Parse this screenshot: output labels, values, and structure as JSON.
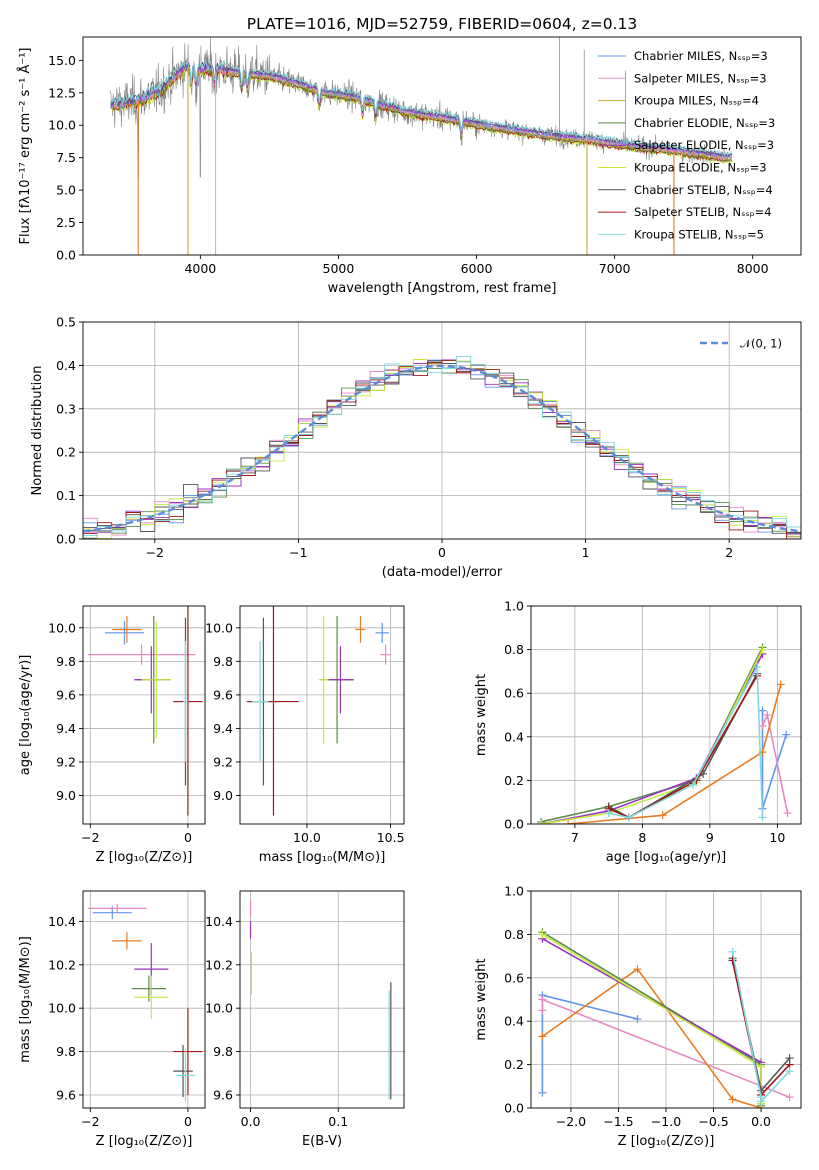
{
  "title": "PLATE=1016, MJD=52759, FIBERID=0604, z=0.13",
  "colors": {
    "chabrier_miles": "#6495ed",
    "salpeter_miles": "#e78ac3",
    "kroupa_miles": "#c8a82a",
    "chabrier_elodie": "#5b8c4a",
    "salpeter_elodie": "#9b30c0",
    "kroupa_elodie": "#c5ea3a",
    "chabrier_stelib": "#555555",
    "salpeter_stelib": "#a01818",
    "kroupa_stelib": "#80d8e0",
    "orange": "#e87d24",
    "data": "#808080"
  },
  "chart_data": [
    {
      "id": "spectrum",
      "type": "line",
      "xlabel": "wavelength [Angstrom, rest frame]",
      "ylabel": "Flux [fλ10⁻¹⁷ erg cm⁻² s⁻¹ Å⁻¹]",
      "xlim": [
        3150,
        8350
      ],
      "ylim": [
        0,
        16.8
      ],
      "xticks": [
        "4000",
        "5000",
        "6000",
        "7000",
        "8000"
      ],
      "yticks": [
        "0.0",
        "2.5",
        "5.0",
        "7.5",
        "10.0",
        "12.5",
        "15.0"
      ],
      "legend": [
        "Chabrier MILES, Nₛₛₚ=3",
        "Salpeter MILES, Nₛₛₚ=3",
        "Kroupa MILES, Nₛₛₚ=4",
        "Chabrier ELODIE, Nₛₛₚ=3",
        "Salpeter ELODIE, Nₛₛₚ=3",
        "Kroupa ELODIE, Nₛₛₚ=3",
        "Chabrier STELIB, Nₛₛₚ=4",
        "Salpeter STELIB, Nₛₛₚ=4",
        "Kroupa STELIB, Nₛₛₚ=5"
      ],
      "legend_placement": "upper-right",
      "model_continuum": {
        "x": [
          3350,
          3450,
          3550,
          3650,
          3700,
          3800,
          3900,
          3950,
          4050,
          4150,
          4300,
          4500,
          4700,
          4900,
          5100,
          5300,
          5500,
          5800,
          6100,
          6400,
          6600,
          6800,
          7000,
          7200,
          7400,
          7600,
          7800
        ],
        "y": [
          11.5,
          11.7,
          11.9,
          12.4,
          12.6,
          13.6,
          14.6,
          14.2,
          14.4,
          14.3,
          14.0,
          13.8,
          13.2,
          12.5,
          12.2,
          11.6,
          11.0,
          10.5,
          9.9,
          9.4,
          9.1,
          8.9,
          8.6,
          8.3,
          8.1,
          7.8,
          7.5
        ]
      }
    },
    {
      "id": "residuals",
      "type": "bar",
      "xlabel": "(data-model)/error",
      "ylabel": "Normed distribution",
      "xlim": [
        -2.5,
        2.5
      ],
      "ylim": [
        0,
        0.5
      ],
      "xticks": [
        "−2",
        "−1",
        "0",
        "1",
        "2"
      ],
      "yticks": [
        "0.0",
        "0.1",
        "0.2",
        "0.3",
        "0.4",
        "0.5"
      ],
      "legend": [
        "𝒩(0, 1)"
      ],
      "legend_placement": "upper-right",
      "bin_width": 0.1,
      "bin_start": -2.5
    },
    {
      "id": "age_vs_Z",
      "type": "scatter",
      "xlabel": "Z [log₁₀(Z/Z⊙)]",
      "ylabel": "age  [log₁₀(age/yr)]",
      "xlim": [
        -2.15,
        0.35
      ],
      "ylim": [
        8.83,
        10.13
      ],
      "xticks": [
        "−2",
        "0"
      ],
      "yticks": [
        "9.0",
        "9.2",
        "9.4",
        "9.6",
        "9.8",
        "10.0"
      ],
      "points": [
        {
          "model": "chabrier_miles",
          "x": -1.3,
          "y": 9.97,
          "xerr": 0.4,
          "yerr": 0.07
        },
        {
          "model": "salpeter_miles",
          "x": -0.95,
          "y": 9.84,
          "xerr": 1.1,
          "yerr": 0.06
        },
        {
          "model": "orange",
          "x": -1.25,
          "y": 9.99,
          "xerr": 0.3,
          "yerr": 0.08
        },
        {
          "model": "chabrier_elodie",
          "x": -0.7,
          "y": 9.69,
          "xerr": 0.35,
          "yerr": 0.38
        },
        {
          "model": "salpeter_elodie",
          "x": -0.75,
          "y": 9.69,
          "xerr": 0.35,
          "yerr": 0.2
        },
        {
          "model": "kroupa_elodie",
          "x": -0.65,
          "y": 9.69,
          "xerr": 0.3,
          "yerr": 0.35
        },
        {
          "model": "chabrier_stelib",
          "x": -0.05,
          "y": 9.56,
          "xerr": 0.05,
          "yerr": 0.5
        },
        {
          "model": "salpeter_stelib",
          "x": 0.0,
          "y": 9.56,
          "xerr": 0.3,
          "yerr": 0.68
        },
        {
          "model": "kroupa_stelib",
          "x": -0.05,
          "y": 9.56,
          "xerr": 0.05,
          "yerr": 0.36
        }
      ]
    },
    {
      "id": "age_vs_mass",
      "type": "scatter",
      "xlabel": "mass [log₁₀(M/M⊙)]",
      "ylabel": "",
      "xlim": [
        9.6,
        10.58
      ],
      "ylim": [
        8.83,
        10.13
      ],
      "xticks": [
        "10.0",
        "10.5"
      ],
      "yticks": [
        "9.0",
        "9.2",
        "9.4",
        "9.6",
        "9.8",
        "10.0"
      ],
      "points": [
        {
          "model": "chabrier_miles",
          "x": 10.45,
          "y": 9.97,
          "xerr": 0.04,
          "yerr": 0.06
        },
        {
          "model": "salpeter_miles",
          "x": 10.47,
          "y": 9.84,
          "xerr": 0.03,
          "yerr": 0.06
        },
        {
          "model": "orange",
          "x": 10.32,
          "y": 9.99,
          "xerr": 0.03,
          "yerr": 0.08
        },
        {
          "model": "chabrier_elodie",
          "x": 10.18,
          "y": 9.69,
          "xerr": 0.1,
          "yerr": 0.38
        },
        {
          "model": "salpeter_elodie",
          "x": 10.2,
          "y": 9.69,
          "xerr": 0.08,
          "yerr": 0.2
        },
        {
          "model": "kroupa_elodie",
          "x": 10.1,
          "y": 9.69,
          "xerr": 0.03,
          "yerr": 0.38
        },
        {
          "model": "chabrier_stelib",
          "x": 9.74,
          "y": 9.56,
          "xerr": 0.1,
          "yerr": 0.5
        },
        {
          "model": "salpeter_stelib",
          "x": 9.8,
          "y": 9.56,
          "xerr": 0.15,
          "yerr": 0.68
        },
        {
          "model": "kroupa_stelib",
          "x": 9.72,
          "y": 9.56,
          "xerr": 0.05,
          "yerr": 0.36
        }
      ]
    },
    {
      "id": "weight_vs_age",
      "type": "line",
      "xlabel": "age  [log₁₀(age/yr)]",
      "ylabel": "mass weight",
      "xlim": [
        6.35,
        10.35
      ],
      "ylim": [
        0,
        1
      ],
      "xticks": [
        "7",
        "8",
        "9",
        "10"
      ],
      "yticks": [
        "0.0",
        "0.2",
        "0.4",
        "0.6",
        "0.8",
        "1.0"
      ],
      "series": [
        {
          "model": "chabrier_miles",
          "x": [
            9.78,
            9.78,
            10.13
          ],
          "y": [
            0.52,
            0.07,
            0.41
          ]
        },
        {
          "model": "salpeter_miles",
          "x": [
            9.78,
            9.85,
            10.15
          ],
          "y": [
            0.45,
            0.5,
            0.05
          ]
        },
        {
          "model": "orange",
          "x": [
            6.9,
            8.3,
            9.78,
            10.05
          ],
          "y": [
            0.0,
            0.04,
            0.33,
            0.64
          ]
        },
        {
          "model": "chabrier_elodie",
          "x": [
            6.5,
            7.5,
            8.8,
            9.78
          ],
          "y": [
            0.01,
            0.08,
            0.2,
            0.81
          ]
        },
        {
          "model": "salpeter_elodie",
          "x": [
            6.5,
            7.5,
            8.8,
            9.78
          ],
          "y": [
            0.0,
            0.06,
            0.21,
            0.78
          ]
        },
        {
          "model": "kroupa_elodie",
          "x": [
            6.5,
            7.5,
            8.8,
            9.78
          ],
          "y": [
            0.0,
            0.05,
            0.19,
            0.8
          ]
        },
        {
          "model": "chabrier_stelib",
          "x": [
            7.5,
            7.8,
            8.9,
            9.7
          ],
          "y": [
            0.08,
            0.03,
            0.23,
            0.69
          ]
        },
        {
          "model": "salpeter_stelib",
          "x": [
            7.5,
            7.8,
            8.8,
            9.7
          ],
          "y": [
            0.07,
            0.03,
            0.2,
            0.68
          ]
        },
        {
          "model": "kroupa_stelib",
          "x": [
            7.5,
            7.8,
            8.75,
            9.7,
            9.78
          ],
          "y": [
            0.05,
            0.03,
            0.18,
            0.72,
            0.03
          ]
        }
      ]
    },
    {
      "id": "mass_vs_Z",
      "type": "scatter",
      "xlabel": "Z [log₁₀(Z/Z⊙)]",
      "ylabel": "mass [log₁₀(M/M⊙)]",
      "xlim": [
        -2.15,
        0.35
      ],
      "ylim": [
        9.54,
        10.54
      ],
      "xticks": [
        "−2",
        "0"
      ],
      "yticks": [
        "9.6",
        "9.8",
        "10.0",
        "10.2",
        "10.4"
      ],
      "points": [
        {
          "model": "chabrier_miles",
          "x": -1.55,
          "y": 10.44,
          "xerr": 0.4,
          "yerr": 0.03
        },
        {
          "model": "salpeter_miles",
          "x": -1.45,
          "y": 10.46,
          "xerr": 0.6,
          "yerr": 0.02
        },
        {
          "model": "orange",
          "x": -1.25,
          "y": 10.31,
          "xerr": 0.3,
          "yerr": 0.04
        },
        {
          "model": "chabrier_elodie",
          "x": -0.8,
          "y": 10.09,
          "xerr": 0.35,
          "yerr": 0.06
        },
        {
          "model": "salpeter_elodie",
          "x": -0.75,
          "y": 10.18,
          "xerr": 0.35,
          "yerr": 0.12
        },
        {
          "model": "kroupa_elodie",
          "x": -0.75,
          "y": 10.05,
          "xerr": 0.35,
          "yerr": 0.1
        },
        {
          "model": "chabrier_stelib",
          "x": -0.1,
          "y": 9.71,
          "xerr": 0.2,
          "yerr": 0.12
        },
        {
          "model": "salpeter_stelib",
          "x": 0.0,
          "y": 9.8,
          "xerr": 0.3,
          "yerr": 0.2
        },
        {
          "model": "kroupa_stelib",
          "x": -0.05,
          "y": 9.69,
          "xerr": 0.2,
          "yerr": 0.12
        }
      ]
    },
    {
      "id": "mass_vs_ebv",
      "type": "scatter",
      "xlabel": "E(B-V)",
      "ylabel": "",
      "xlim": [
        -0.012,
        0.175
      ],
      "ylim": [
        9.54,
        10.54
      ],
      "xticks": [
        "0.0",
        "0.1"
      ],
      "yticks": [
        "9.6",
        "9.8",
        "10.0",
        "10.2",
        "10.4"
      ],
      "points": [
        {
          "model": "salpeter_miles",
          "x": 0.0,
          "y": 10.46,
          "xerr": 0.0,
          "yerr": 0.04
        },
        {
          "model": "salpeter_elodie",
          "x": 0.0,
          "y": 10.36,
          "xerr": 0.0,
          "yerr": 0.04
        },
        {
          "model": "kroupa_elodie",
          "x": 0.001,
          "y": 10.16,
          "xerr": 0.0,
          "yerr": 0.1
        },
        {
          "model": "chabrier_stelib",
          "x": 0.16,
          "y": 9.85,
          "xerr": 0.0,
          "yerr": 0.27
        },
        {
          "model": "kroupa_stelib",
          "x": 0.158,
          "y": 9.83,
          "xerr": 0.0,
          "yerr": 0.25
        }
      ]
    },
    {
      "id": "weight_vs_Z",
      "type": "line",
      "xlabel": "Z [log₁₀(Z/Z⊙)]",
      "ylabel": "mass weight",
      "xlim": [
        -2.42,
        0.42
      ],
      "ylim": [
        0,
        1
      ],
      "xticks": [
        "−2.0",
        "−1.5",
        "−1.0",
        "−0.5",
        "0.0"
      ],
      "yticks": [
        "0.0",
        "0.2",
        "0.4",
        "0.6",
        "0.8",
        "1.0"
      ],
      "series": [
        {
          "model": "chabrier_miles",
          "x": [
            -2.3,
            -2.3,
            -1.3
          ],
          "y": [
            0.07,
            0.52,
            0.41
          ]
        },
        {
          "model": "salpeter_miles",
          "x": [
            -2.3,
            -2.3,
            0.3
          ],
          "y": [
            0.45,
            0.5,
            0.05
          ]
        },
        {
          "model": "orange",
          "x": [
            -2.3,
            -1.3,
            -0.3,
            0.0
          ],
          "y": [
            0.33,
            0.64,
            0.04,
            0.0
          ]
        },
        {
          "model": "chabrier_elodie",
          "x": [
            -2.3,
            0.0,
            0.0
          ],
          "y": [
            0.81,
            0.2,
            0.01
          ]
        },
        {
          "model": "salpeter_elodie",
          "x": [
            -2.3,
            0.0,
            0.0
          ],
          "y": [
            0.78,
            0.21,
            0.02
          ]
        },
        {
          "model": "kroupa_elodie",
          "x": [
            -2.3,
            0.0,
            0.0
          ],
          "y": [
            0.8,
            0.19,
            0.02
          ]
        },
        {
          "model": "chabrier_stelib",
          "x": [
            -0.3,
            0.0,
            0.3
          ],
          "y": [
            0.69,
            0.08,
            0.23
          ]
        },
        {
          "model": "salpeter_stelib",
          "x": [
            -0.3,
            0.0,
            0.3
          ],
          "y": [
            0.68,
            0.06,
            0.2
          ]
        },
        {
          "model": "kroupa_stelib",
          "x": [
            -0.3,
            0.0,
            0.0,
            0.3
          ],
          "y": [
            0.72,
            0.05,
            0.03,
            0.17
          ]
        }
      ]
    }
  ]
}
